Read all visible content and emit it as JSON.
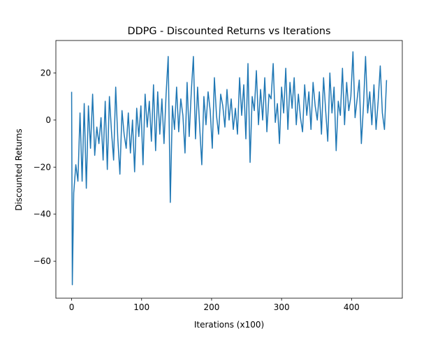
{
  "chart_data": {
    "type": "line",
    "title": "DDPG - Discounted Returns vs Iterations",
    "x_label": "Iterations (x100)",
    "y_label": "Discounted Returns",
    "color": "#1f77b4",
    "x": [
      0,
      1,
      3,
      6,
      9,
      12,
      15,
      18,
      21,
      24,
      27,
      30,
      33,
      36,
      39,
      42,
      45,
      48,
      51,
      54,
      57,
      60,
      63,
      66,
      69,
      72,
      75,
      78,
      81,
      84,
      87,
      90,
      93,
      96,
      99,
      102,
      105,
      108,
      111,
      114,
      117,
      120,
      123,
      126,
      129,
      132,
      135,
      138,
      141,
      144,
      147,
      150,
      153,
      156,
      159,
      162,
      165,
      168,
      171,
      174,
      177,
      180,
      183,
      186,
      189,
      192,
      195,
      198,
      201,
      204,
      207,
      210,
      213,
      216,
      219,
      222,
      225,
      228,
      231,
      234,
      237,
      240,
      243,
      246,
      249,
      252,
      255,
      258,
      261,
      264,
      267,
      270,
      273,
      276,
      279,
      282,
      285,
      288,
      291,
      294,
      297,
      300,
      303,
      306,
      309,
      312,
      315,
      318,
      321,
      324,
      327,
      330,
      333,
      336,
      339,
      342,
      345,
      348,
      351,
      354,
      357,
      360,
      363,
      366,
      369,
      372,
      375,
      378,
      381,
      384,
      387,
      390,
      393,
      396,
      399,
      402,
      405,
      408,
      411,
      414,
      417,
      420,
      423,
      426,
      429,
      432,
      435,
      438,
      441,
      444,
      447,
      450
    ],
    "values": [
      12,
      -70,
      -31,
      -19,
      -26,
      3,
      -26,
      7,
      -29,
      6,
      -12,
      11,
      -15,
      -3,
      -10,
      1,
      -17,
      8,
      -21,
      10,
      -5,
      -17,
      14,
      -8,
      -23,
      4,
      -6,
      -12,
      3,
      -14,
      0,
      -22,
      5,
      -7,
      6,
      -19,
      11,
      -3,
      8,
      -9,
      15,
      -13,
      12,
      -6,
      9,
      -10,
      11,
      27,
      -35,
      6,
      -4,
      14,
      -5,
      9,
      2,
      -14,
      16,
      -7,
      12,
      27,
      -8,
      14,
      -3,
      -19,
      10,
      -2,
      12,
      4,
      -12,
      18,
      2,
      -6,
      11,
      6,
      -3,
      13,
      0,
      9,
      -4,
      5,
      -6,
      18,
      2,
      15,
      -8,
      24,
      -18,
      10,
      4,
      21,
      -2,
      13,
      0,
      18,
      -5,
      11,
      9,
      24,
      -1,
      7,
      -10,
      14,
      3,
      22,
      -4,
      16,
      5,
      18,
      -2,
      11,
      1,
      -5,
      15,
      2,
      12,
      -4,
      16,
      6,
      0,
      12,
      -6,
      18,
      4,
      -9,
      20,
      3,
      14,
      -13,
      8,
      2,
      22,
      -2,
      16,
      4,
      10,
      29,
      1,
      9,
      17,
      -10,
      6,
      27,
      3,
      12,
      -2,
      15,
      -4,
      8,
      23,
      3,
      -4,
      17
    ],
    "xlim": [
      -22.5,
      472.5
    ],
    "ylim": [
      -75.7,
      33.8
    ],
    "xticks": [
      0,
      100,
      200,
      300,
      400
    ],
    "yticks": [
      {
        "value": -60,
        "label": "−60"
      },
      {
        "value": -40,
        "label": "−40"
      },
      {
        "value": -20,
        "label": "−20"
      },
      0,
      20
    ]
  }
}
